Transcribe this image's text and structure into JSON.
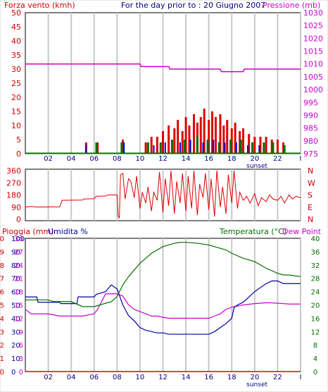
{
  "header": {
    "left_title": "Forza vento (kmh)",
    "center_title": "For the day prior to : 20 Giugno 2007",
    "right_title": "Pressione (mb)"
  },
  "colors": {
    "wind": "#e00000",
    "gust": "#0000e0",
    "pressure": "#cc00cc",
    "rain": "#e00000",
    "humidity": "#0000a0",
    "temperature": "#007000",
    "dewpoint": "#cc00cc",
    "grid": "#c8c8c8",
    "axis_text_left": "#d00000",
    "axis_text_right": "#cc00cc",
    "axis_text_temp": "#007000"
  },
  "chart_data": [
    {
      "type": "bar",
      "id": "wind",
      "x_ticks": [
        "02",
        "04",
        "06",
        "08",
        "10",
        "12",
        "14",
        "16",
        "18",
        "20",
        "22",
        "I"
      ],
      "x_annotation": "sunset",
      "left_axis": {
        "label": "Forza vento (kmh)",
        "ticks": [
          0,
          5,
          10,
          15,
          20,
          25,
          30,
          35,
          40,
          45,
          50
        ],
        "ylim": [
          0,
          50
        ]
      },
      "right_axis": {
        "label": "Pressione (mb)",
        "ticks": [
          975,
          980,
          985,
          990,
          995,
          1000,
          1005,
          1010,
          1015,
          1020,
          1025,
          1030
        ],
        "ylim": [
          975,
          1030
        ]
      },
      "grid": true,
      "wind_speed": {
        "x": [
          5.3,
          6.3,
          8.5,
          10.5,
          11.0,
          11.5,
          12.0,
          12.5,
          13.0,
          13.3,
          13.7,
          14.0,
          14.3,
          14.7,
          15.0,
          15.3,
          15.6,
          16.0,
          16.3,
          16.6,
          17.0,
          17.3,
          17.6,
          18.0,
          18.3,
          18.7,
          19.0,
          19.5,
          20.0,
          20.5,
          21.0,
          21.5,
          22.0,
          22.5
        ],
        "values": [
          4,
          4,
          5,
          4,
          6,
          6,
          8,
          10,
          9,
          12,
          8,
          13,
          10,
          14,
          11,
          13,
          16,
          12,
          15,
          13,
          14,
          10,
          12,
          9,
          11,
          8,
          9,
          7,
          6,
          6,
          6,
          5,
          5,
          4
        ]
      },
      "gust": {
        "x": [
          5.3,
          8.6,
          11.2,
          12.2,
          13.5,
          14.4,
          15.5,
          16.4,
          17.4,
          18.4,
          19.4,
          20.4
        ],
        "values": [
          3,
          4,
          3,
          4,
          4,
          5,
          4,
          5,
          4,
          4,
          3,
          3
        ]
      },
      "calm": {
        "x": [
          6.2,
          8.4,
          10.7,
          11.8,
          12.8,
          13.9,
          15.0,
          15.9,
          16.9,
          17.9,
          18.8,
          19.8,
          20.8,
          21.6,
          22.6
        ],
        "values": [
          4,
          4,
          4,
          4,
          5,
          5,
          6,
          5,
          4,
          5,
          5,
          4,
          4,
          4,
          3
        ]
      },
      "pressure": {
        "x": [
          0,
          10.0,
          10.1,
          12.5,
          12.6,
          17.0,
          17.1,
          19.0,
          19.1,
          24.0
        ],
        "values": [
          1010,
          1010,
          1009,
          1009,
          1008,
          1008,
          1007,
          1007,
          1008,
          1008
        ]
      }
    },
    {
      "type": "line",
      "id": "direction",
      "left_axis": {
        "ticks": [
          0,
          90,
          180,
          270,
          360
        ],
        "ylim": [
          0,
          360
        ]
      },
      "right_labels": [
        "N",
        "W",
        "S",
        "E",
        "N"
      ],
      "values": {
        "x": [
          0,
          0.5,
          1.0,
          3.0,
          3.2,
          5.0,
          5.1,
          6.0,
          6.2,
          7.0,
          7.2,
          8.0,
          8.1,
          8.2,
          8.3,
          8.5,
          8.7,
          9.0,
          9.2,
          9.5,
          9.7,
          10.0,
          10.2,
          10.5,
          10.7,
          11.0,
          11.2,
          11.5,
          11.7,
          12.0,
          12.2,
          12.5,
          12.7,
          13.0,
          13.2,
          13.5,
          13.7,
          14.0,
          14.2,
          14.5,
          14.7,
          15.0,
          15.2,
          15.5,
          15.7,
          16.0,
          16.2,
          16.5,
          16.7,
          17.0,
          17.2,
          17.5,
          17.7,
          18.0,
          18.2,
          18.5,
          18.7,
          19.0,
          19.3,
          19.6,
          20.0,
          20.3,
          20.6,
          21.0,
          21.3,
          21.6,
          22.0,
          22.3,
          22.6,
          23.0,
          23.3,
          23.6,
          24.0
        ],
        "values": [
          90,
          95,
          90,
          92,
          140,
          142,
          150,
          152,
          170,
          172,
          180,
          180,
          20,
          10,
          330,
          340,
          150,
          300,
          280,
          160,
          320,
          80,
          200,
          120,
          240,
          60,
          200,
          140,
          350,
          50,
          300,
          100,
          360,
          40,
          280,
          120,
          340,
          60,
          320,
          80,
          360,
          30,
          260,
          160,
          340,
          70,
          300,
          20,
          360,
          90,
          240,
          40,
          330,
          120,
          360,
          80,
          200,
          140,
          170,
          120,
          190,
          100,
          160,
          130,
          180,
          150,
          140,
          170,
          120,
          180,
          150,
          170,
          160
        ]
      }
    },
    {
      "type": "line",
      "id": "rain_humidity_temp",
      "left_labels": {
        "rain": "Pioggia (mm)",
        "humidity": "Umidita %",
        "temperature": "Temperatura (°C)",
        "dewpoint": "Dew Point"
      },
      "rain_axis": {
        "ticks": [
          0,
          1,
          2,
          3,
          4,
          5,
          6,
          7,
          8,
          9,
          10
        ],
        "ylim": [
          0,
          10
        ]
      },
      "humidity_axis": {
        "ticks": [
          0,
          10,
          20,
          30,
          40,
          50,
          60,
          70,
          80,
          90,
          100
        ],
        "ylim": [
          0,
          100
        ]
      },
      "temp_left_axis": {
        "ticks": [
          0,
          3,
          6,
          9,
          12,
          15,
          18,
          21,
          24,
          27,
          30
        ],
        "ylim": [
          0,
          30
        ]
      },
      "temp_right_axis": {
        "ticks": [
          0,
          4,
          8,
          12,
          16,
          20,
          24,
          28,
          32,
          36,
          40
        ],
        "ylim": [
          0,
          40
        ]
      },
      "x_ticks": [
        "02",
        "04",
        "06",
        "08",
        "10",
        "12",
        "14",
        "16",
        "18",
        "20",
        "22",
        "I"
      ],
      "x_annotation": "sunset",
      "rain": {
        "x": [
          0,
          24
        ],
        "values": [
          0,
          0
        ]
      },
      "humidity": {
        "x": [
          0,
          1.0,
          1.1,
          3.0,
          3.1,
          4.5,
          4.6,
          6.0,
          6.2,
          7.0,
          7.5,
          8.0,
          8.5,
          9.0,
          9.5,
          10.0,
          10.5,
          11.0,
          11.5,
          12.0,
          12.5,
          13.0,
          14.0,
          15.0,
          16.0,
          16.5,
          17.0,
          17.5,
          18.0,
          18.2,
          18.5,
          19.0,
          19.5,
          20.0,
          20.5,
          21.0,
          21.5,
          22.0,
          22.5,
          23.0,
          24.0
        ],
        "values": [
          56,
          56,
          52,
          52,
          51,
          51,
          56,
          56,
          58,
          60,
          65,
          62,
          50,
          42,
          38,
          33,
          31,
          30,
          29,
          29,
          28,
          28,
          28,
          28,
          28,
          30,
          33,
          36,
          40,
          48,
          50,
          52,
          56,
          60,
          63,
          66,
          68,
          68,
          66,
          66,
          66
        ]
      },
      "temperature": {
        "x": [
          0,
          2.0,
          2.5,
          3.0,
          4.0,
          5.0,
          6.0,
          6.5,
          7.0,
          7.5,
          8.0,
          8.5,
          9.0,
          9.5,
          10.0,
          10.5,
          11.0,
          11.5,
          12.0,
          12.5,
          13.0,
          13.5,
          14.0,
          15.0,
          16.0,
          17.0,
          17.5,
          18.0,
          19.0,
          20.0,
          21.0,
          22.0,
          22.5,
          23.0,
          24.0
        ],
        "values": [
          21.5,
          21.5,
          21,
          21,
          21,
          19.5,
          19.5,
          20,
          20.5,
          21,
          22.5,
          26,
          28.5,
          30.5,
          32.5,
          34,
          35.5,
          36.5,
          37.5,
          38,
          38.5,
          38.8,
          38.8,
          38.5,
          38,
          37,
          36.5,
          35.5,
          34,
          33,
          31,
          29.5,
          29,
          29,
          28.5
        ]
      },
      "dewpoint": {
        "x": [
          0,
          0.5,
          1.0,
          2.0,
          3.0,
          4.0,
          5.0,
          6.0,
          6.3,
          6.7,
          7.0,
          7.5,
          8.0,
          8.5,
          9.0,
          9.5,
          10.0,
          10.5,
          11.0,
          11.5,
          12.0,
          12.5,
          13.0,
          14.0,
          15.0,
          16.0,
          16.5,
          17.0,
          17.5,
          18.0,
          19.0,
          20.0,
          21.0,
          22.0,
          23.0,
          24.0
        ],
        "values": [
          14,
          13,
          13,
          13,
          12.5,
          12.5,
          12.5,
          13,
          14,
          16,
          17.5,
          17.5,
          17.5,
          17,
          15,
          14,
          13.5,
          13,
          12.5,
          12.5,
          12.2,
          12,
          12,
          12,
          12,
          12,
          12.5,
          13,
          14,
          14.5,
          15,
          15.3,
          15.5,
          15.4,
          15.2,
          15.2
        ]
      }
    }
  ]
}
